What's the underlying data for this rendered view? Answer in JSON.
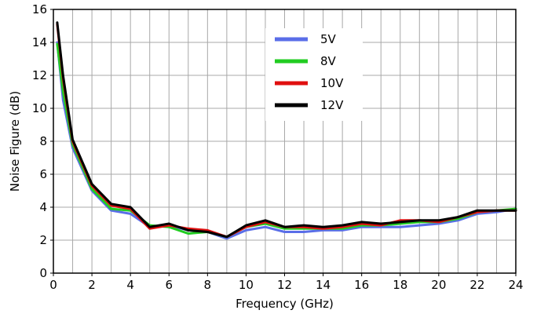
{
  "chart_data": {
    "type": "line",
    "title": "",
    "xlabel": "Frequency (GHz)",
    "ylabel": "Noise Figure (dB)",
    "xlim": [
      0,
      24
    ],
    "ylim": [
      0,
      16
    ],
    "xticks": [
      "0",
      "2",
      "4",
      "6",
      "8",
      "10",
      "12",
      "14",
      "16",
      "18",
      "20",
      "22",
      "24"
    ],
    "yticks": [
      "0",
      "2",
      "4",
      "6",
      "8",
      "10",
      "12",
      "14",
      "16"
    ],
    "grid": true,
    "legend_position": "top-center",
    "x": [
      0.2,
      0.5,
      1,
      2,
      3,
      4,
      5,
      6,
      7,
      8,
      9,
      10,
      11,
      12,
      13,
      14,
      15,
      16,
      17,
      18,
      19,
      20,
      21,
      22,
      23,
      24
    ],
    "series": [
      {
        "name": "5V",
        "color": "#5a6ee8",
        "values": [
          14.0,
          10.5,
          7.6,
          5.0,
          3.8,
          3.6,
          2.8,
          2.9,
          2.6,
          2.5,
          2.1,
          2.6,
          2.8,
          2.5,
          2.5,
          2.6,
          2.6,
          2.8,
          2.8,
          2.8,
          2.9,
          3.0,
          3.2,
          3.6,
          3.7,
          3.9
        ]
      },
      {
        "name": "8V",
        "color": "#22cc22",
        "values": [
          13.9,
          11.0,
          7.8,
          5.1,
          3.9,
          3.8,
          2.9,
          2.8,
          2.4,
          2.5,
          2.2,
          2.8,
          3.0,
          2.7,
          2.7,
          2.7,
          2.7,
          2.9,
          2.9,
          3.0,
          3.1,
          3.1,
          3.3,
          3.7,
          3.8,
          3.9
        ]
      },
      {
        "name": "10V",
        "color": "#e01010",
        "values": [
          15.1,
          11.8,
          8.0,
          5.3,
          4.1,
          3.9,
          2.7,
          2.9,
          2.7,
          2.6,
          2.2,
          2.8,
          3.1,
          2.8,
          2.8,
          2.7,
          2.8,
          3.0,
          2.9,
          3.2,
          3.2,
          3.1,
          3.4,
          3.7,
          3.8,
          3.8
        ]
      },
      {
        "name": "12V",
        "color": "#000000",
        "values": [
          15.2,
          12.0,
          8.1,
          5.4,
          4.2,
          4.0,
          2.8,
          3.0,
          2.6,
          2.5,
          2.2,
          2.9,
          3.2,
          2.8,
          2.9,
          2.8,
          2.9,
          3.1,
          3.0,
          3.1,
          3.2,
          3.2,
          3.4,
          3.8,
          3.8,
          3.8
        ]
      }
    ]
  }
}
